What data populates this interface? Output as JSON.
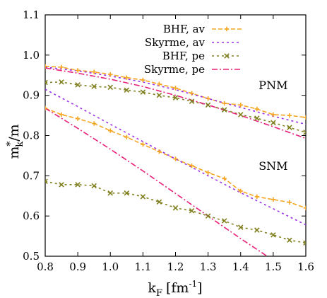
{
  "chart_data": {
    "type": "line",
    "xlabel_main": "k",
    "xlabel_sub": "F",
    "xlabel_unit": "[fm",
    "xlabel_unit_sup": "-1",
    "xlabel_unit_end": "]",
    "ylabel_main": "m",
    "ylabel_sup": "*",
    "ylabel_sub": "k",
    "ylabel_end": "/m",
    "xlim": [
      0.8,
      1.6
    ],
    "ylim": [
      0.5,
      1.1
    ],
    "xticks": [
      0.8,
      0.9,
      1.0,
      1.1,
      1.2,
      1.3,
      1.4,
      1.5,
      1.6
    ],
    "xtick_labels": [
      "0.8",
      "0.9",
      "1.0",
      "1.1",
      "1.2",
      "1.3",
      "1.4",
      "1.5",
      "1.6"
    ],
    "yticks": [
      0.5,
      0.6,
      0.7,
      0.8,
      0.9,
      1.0,
      1.1
    ],
    "ytick_labels": [
      "0.5",
      "0.6",
      "0.7",
      "0.8",
      "0.9",
      "1.0",
      "1.1"
    ],
    "grid": false,
    "legend_position": "top-right",
    "annotations": [
      {
        "text": "PNM",
        "x": 1.5,
        "y": 0.915
      },
      {
        "text": "SNM",
        "x": 1.5,
        "y": 0.715
      }
    ],
    "series": [
      {
        "name": "BHF, av",
        "color": "#f5a623",
        "dash": "6,3",
        "marker": "plus",
        "group": "PNM",
        "x": [
          0.8,
          0.85,
          0.9,
          0.95,
          1.0,
          1.05,
          1.1,
          1.15,
          1.2,
          1.25,
          1.3,
          1.35,
          1.4,
          1.45,
          1.5,
          1.55,
          1.6
        ],
        "y": [
          0.972,
          0.97,
          0.962,
          0.958,
          0.952,
          0.944,
          0.938,
          0.928,
          0.918,
          0.905,
          0.892,
          0.88,
          0.876,
          0.866,
          0.852,
          0.85,
          0.845
        ]
      },
      {
        "name": "Skyrme, av",
        "color": "#9b30e8",
        "dash": "3,4",
        "marker": "none",
        "group": "PNM",
        "x": [
          0.8,
          0.9,
          1.0,
          1.1,
          1.2,
          1.3,
          1.4,
          1.5,
          1.6
        ],
        "y": [
          0.97,
          0.961,
          0.948,
          0.933,
          0.914,
          0.892,
          0.87,
          0.848,
          0.828
        ]
      },
      {
        "name": "BHF, pe",
        "color": "#808020",
        "dash": "3,4",
        "marker": "x",
        "group": "PNM",
        "x": [
          0.8,
          0.85,
          0.9,
          0.95,
          1.0,
          1.05,
          1.1,
          1.15,
          1.2,
          1.25,
          1.3,
          1.35,
          1.4,
          1.45,
          1.5,
          1.55,
          1.6
        ],
        "y": [
          0.932,
          0.933,
          0.926,
          0.922,
          0.92,
          0.913,
          0.908,
          0.9,
          0.894,
          0.885,
          0.876,
          0.864,
          0.852,
          0.843,
          0.832,
          0.82,
          0.808
        ]
      },
      {
        "name": "Skyrme, pe",
        "color": "#e8207a",
        "dash": "8,3,2,3",
        "marker": "none",
        "group": "PNM",
        "x": [
          0.8,
          0.9,
          1.0,
          1.1,
          1.2,
          1.3,
          1.4,
          1.5,
          1.6
        ],
        "y": [
          0.968,
          0.955,
          0.94,
          0.922,
          0.9,
          0.876,
          0.85,
          0.822,
          0.793
        ]
      },
      {
        "group": "SNM",
        "color": "#f5a623",
        "dash": "6,3",
        "marker": "plus",
        "x": [
          0.8,
          0.85,
          0.9,
          0.95,
          1.0,
          1.05,
          1.1,
          1.15,
          1.2,
          1.25,
          1.3,
          1.35,
          1.4,
          1.45,
          1.5,
          1.55,
          1.6
        ],
        "y": [
          0.868,
          0.852,
          0.842,
          0.83,
          0.812,
          0.796,
          0.778,
          0.76,
          0.742,
          0.725,
          0.708,
          0.693,
          0.662,
          0.648,
          0.641,
          0.634,
          0.62
        ]
      },
      {
        "group": "SNM",
        "color": "#9b30e8",
        "dash": "3,4",
        "marker": "none",
        "x": [
          0.8,
          0.9,
          1.0,
          1.1,
          1.2,
          1.3,
          1.4,
          1.5,
          1.6
        ],
        "y": [
          0.915,
          0.872,
          0.828,
          0.785,
          0.742,
          0.7,
          0.658,
          0.618,
          0.578
        ]
      },
      {
        "group": "SNM",
        "color": "#808020",
        "dash": "3,4",
        "marker": "x",
        "x": [
          0.8,
          0.85,
          0.9,
          0.95,
          1.0,
          1.05,
          1.1,
          1.15,
          1.2,
          1.25,
          1.3,
          1.35,
          1.4,
          1.45,
          1.5,
          1.55,
          1.6
        ],
        "y": [
          0.686,
          0.678,
          0.678,
          0.675,
          0.657,
          0.657,
          0.648,
          0.635,
          0.62,
          0.613,
          0.6,
          0.588,
          0.572,
          0.565,
          0.553,
          0.54,
          0.533
        ]
      },
      {
        "group": "SNM",
        "color": "#e8207a",
        "dash": "8,3,2,3",
        "marker": "none",
        "x": [
          0.8,
          0.9,
          1.0,
          1.1,
          1.2,
          1.3,
          1.4,
          1.5
        ],
        "y": [
          0.868,
          0.818,
          0.766,
          0.712,
          0.656,
          0.6,
          0.544,
          0.49
        ]
      }
    ]
  }
}
